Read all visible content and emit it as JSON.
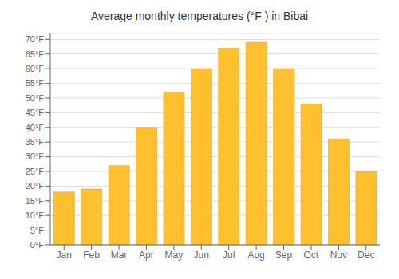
{
  "chart_data": {
    "type": "bar",
    "title": "Average monthly temperatures (°F ) in Bibai",
    "categories": [
      "Jan",
      "Feb",
      "Mar",
      "Apr",
      "May",
      "Jun",
      "Jul",
      "Aug",
      "Sep",
      "Oct",
      "Nov",
      "Dec"
    ],
    "values": [
      18,
      19,
      27,
      40,
      52,
      60,
      67,
      69,
      60,
      48,
      36,
      25
    ],
    "color": "#FFC030",
    "ylim": [
      0,
      72
    ],
    "yticks": [
      {
        "value": 0,
        "label": "0°F"
      },
      {
        "value": 5,
        "label": "5°F"
      },
      {
        "value": 10,
        "label": "10°F"
      },
      {
        "value": 15,
        "label": "15°F"
      },
      {
        "value": 20,
        "label": "20°F"
      },
      {
        "value": 25,
        "label": "25°F"
      },
      {
        "value": 30,
        "label": "30°F"
      },
      {
        "value": 35,
        "label": "35°F"
      },
      {
        "value": 40,
        "label": "40°F"
      },
      {
        "value": 45,
        "label": "45°F"
      },
      {
        "value": 50,
        "label": "50°F"
      },
      {
        "value": 55,
        "label": "55°F"
      },
      {
        "value": 60,
        "label": "60°F"
      },
      {
        "value": 65,
        "label": "65°F"
      },
      {
        "value": 70,
        "label": "70°F"
      }
    ],
    "grid": true
  }
}
